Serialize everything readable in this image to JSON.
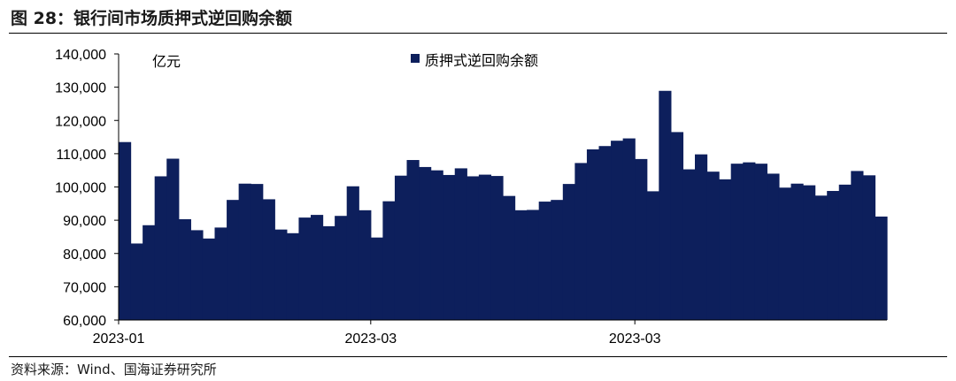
{
  "figure": {
    "title": "图 28：银行间市场质押式逆回购余额",
    "source": "资料来源：Wind、国海证券研究所"
  },
  "chart_data": {
    "type": "bar",
    "unit_label": "亿元",
    "legend": {
      "label": "质押式逆回购余额",
      "placement": "top-center"
    },
    "series": [
      {
        "name": "质押式逆回购余额",
        "color": "#0d1f5c",
        "values": [
          113500,
          83000,
          88500,
          103200,
          108500,
          90300,
          87000,
          84500,
          87800,
          96100,
          101000,
          100900,
          96300,
          87200,
          86100,
          90800,
          91600,
          88200,
          91300,
          100200,
          93000,
          84800,
          95700,
          103400,
          108100,
          106000,
          105000,
          103600,
          105600,
          103200,
          103700,
          103300,
          97300,
          93000,
          93100,
          95600,
          96100,
          100900,
          107200,
          111300,
          112300,
          113900,
          114600,
          108400,
          98700,
          128900,
          116500,
          105300,
          109800,
          104600,
          102300,
          107000,
          107400,
          107000,
          104000,
          99800,
          101000,
          100500,
          97400,
          98800,
          100700,
          104800,
          103500,
          91100
        ]
      }
    ],
    "y_axis": {
      "min": 60000,
      "max": 140000,
      "ticks": [
        "60,000",
        "70,000",
        "80,000",
        "90,000",
        "100,000",
        "110,000",
        "120,000",
        "130,000",
        "140,000"
      ]
    },
    "x_axis": {
      "tick_labels": [
        "2023-01",
        "2023-03",
        "2023-03"
      ],
      "tick_bar_index": [
        0,
        21,
        43
      ]
    },
    "grid": false
  }
}
